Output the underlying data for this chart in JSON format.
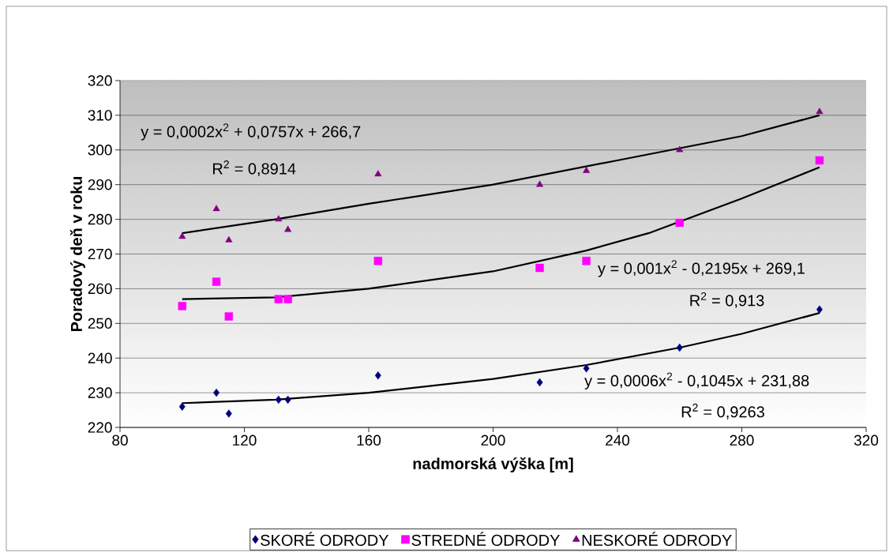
{
  "chart_data": {
    "type": "scatter",
    "xlabel": "nadmorská výška [m]",
    "ylabel": "Poradový deň v roku",
    "xlim": [
      80,
      320
    ],
    "xticks": [
      80,
      120,
      160,
      200,
      240,
      280,
      320
    ],
    "ylim": [
      220,
      320
    ],
    "yticks": [
      220,
      230,
      240,
      250,
      260,
      270,
      280,
      290,
      300,
      310,
      320
    ],
    "grid": "y",
    "legend": "bottom",
    "x": [
      100,
      111,
      115,
      131,
      134,
      163,
      215,
      230,
      260,
      305
    ],
    "series": [
      {
        "name": "SKORÉ ODRODY",
        "color": "#000080",
        "marker": "diamond",
        "values": [
          226,
          230,
          224,
          228,
          228,
          235,
          233,
          237,
          243,
          254
        ]
      },
      {
        "name": "STREDNÉ ODRODY",
        "color": "#ff00ff",
        "marker": "square",
        "values": [
          255,
          262,
          252,
          257,
          257,
          268,
          266,
          268,
          279,
          297
        ]
      },
      {
        "name": "NESKORÉ ODRODY",
        "color": "#800080",
        "marker": "triangle",
        "values": [
          275,
          283,
          274,
          280,
          277,
          293,
          290,
          294,
          300,
          311
        ]
      },
      {
        "type": "line",
        "color": "#000000",
        "marker": "none",
        "x": [
          100,
          130,
          160,
          200,
          230,
          260,
          280,
          305
        ],
        "values": [
          227,
          228,
          230,
          234,
          238,
          243,
          247,
          253
        ]
      },
      {
        "type": "line",
        "color": "#000000",
        "marker": "none",
        "x": [
          100,
          130,
          160,
          200,
          230,
          250,
          280,
          305
        ],
        "values": [
          257,
          257.5,
          260,
          265,
          271,
          276,
          286,
          295
        ]
      },
      {
        "type": "line",
        "color": "#000000",
        "marker": "none",
        "x": [
          100,
          130,
          160,
          200,
          240,
          280,
          305
        ],
        "values": [
          276,
          280,
          284.5,
          290,
          297,
          304,
          310
        ]
      }
    ],
    "annotations": [
      "y = 0,0002x$^{2}$ + 0,0757x + 266,7",
      "R$^{2}$ = 0,8914",
      "y = 0,001x$^{2}$ - 0,2195x + 269,1",
      "R$^{2}$ = 0,913",
      "y = 0,0006x$^{2}$ - 0,1045x + 231,88",
      "R$^{2}$ = 0,9263"
    ]
  }
}
